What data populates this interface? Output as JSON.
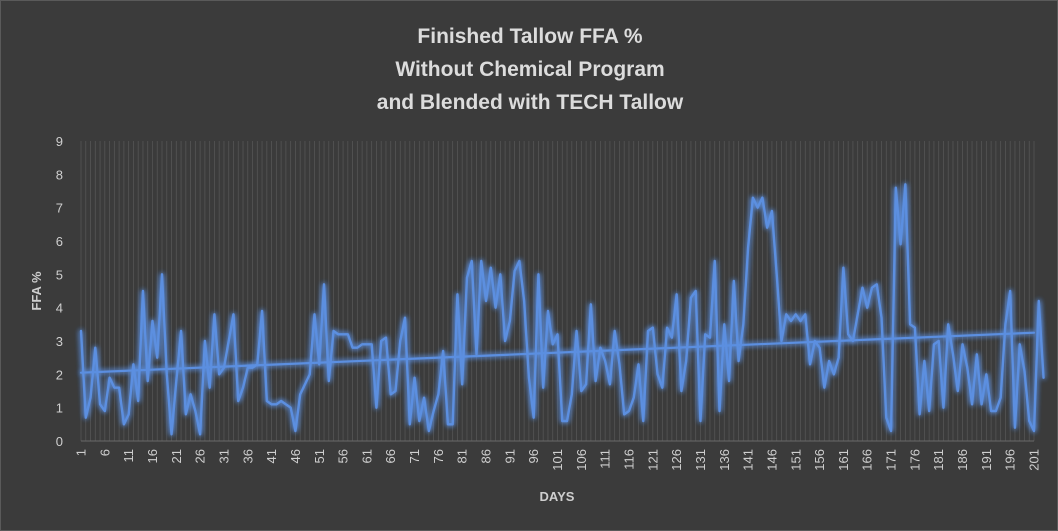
{
  "chart_data": {
    "type": "line",
    "title_lines": [
      "Finished Tallow FFA %",
      "Without Chemical Program",
      "and Blended with TECH Tallow"
    ],
    "xlabel": "DAYS",
    "ylabel": "FFA %",
    "ylim": [
      0,
      9
    ],
    "yticks": [
      0,
      1,
      2,
      3,
      4,
      5,
      6,
      7,
      8,
      9
    ],
    "xlim": [
      1,
      201
    ],
    "xticks": [
      1,
      6,
      11,
      16,
      21,
      26,
      31,
      36,
      41,
      46,
      51,
      56,
      61,
      66,
      71,
      76,
      81,
      86,
      91,
      96,
      101,
      106,
      111,
      116,
      121,
      126,
      131,
      136,
      141,
      146,
      151,
      156,
      161,
      166,
      171,
      176,
      181,
      186,
      191,
      196,
      201
    ],
    "grid": "vertical",
    "legend": "none",
    "colors": {
      "background": "#3b3b3b",
      "series": "#5b8fe0",
      "glow": "#4a7fe8",
      "grid": "#555555",
      "text": "#cfcfcf",
      "title": "#dcdcdc"
    },
    "series": [
      {
        "values": [
          3.3,
          0.7,
          1.3,
          2.8,
          1.1,
          0.9,
          1.9,
          1.6,
          1.6,
          0.5,
          0.8,
          2.3,
          1.2,
          4.5,
          1.8,
          3.6,
          2.5,
          5.0,
          2.0,
          0.2,
          1.8,
          3.3,
          0.8,
          1.4,
          0.9,
          0.2,
          3.0,
          1.6,
          3.8,
          2.0,
          2.2,
          3.0,
          3.8,
          1.2,
          1.6,
          2.2,
          2.2,
          2.3,
          3.9,
          1.2,
          1.1,
          1.1,
          1.2,
          1.1,
          1.0,
          0.3,
          1.4,
          1.7,
          2.0,
          3.8,
          2.3,
          4.7,
          1.8,
          3.3,
          3.2,
          3.2,
          3.2,
          2.8,
          2.8,
          2.9,
          2.9,
          2.9,
          1.0,
          3.0,
          3.1,
          1.4,
          1.5,
          3.0,
          3.7,
          0.5,
          1.9,
          0.6,
          1.3,
          0.3,
          0.9,
          1.4,
          2.7,
          0.5,
          0.5,
          4.4,
          1.7,
          4.9,
          5.4,
          2.6,
          5.4,
          4.2,
          5.2,
          4.0,
          5.0,
          3.0,
          3.6,
          5.1,
          5.4,
          4.2,
          1.9,
          0.7,
          5.0,
          1.6,
          3.9,
          2.9,
          3.2,
          0.6,
          0.6,
          1.4,
          3.3,
          1.5,
          1.7,
          4.1,
          1.8,
          2.8,
          2.4,
          1.7,
          3.3,
          2.3,
          0.8,
          0.9,
          1.3,
          2.3,
          0.6,
          3.3,
          3.4,
          2.0,
          1.6,
          3.4,
          3.1,
          4.4,
          1.5,
          2.4,
          4.3,
          4.5,
          0.6,
          3.2,
          3.1,
          5.4,
          0.9,
          3.5,
          1.8,
          4.8,
          2.4,
          3.5,
          5.8,
          7.3,
          7.0,
          7.3,
          6.4,
          6.9,
          5.0,
          3.0,
          3.8,
          3.6,
          3.8,
          3.6,
          3.8,
          2.3,
          3.0,
          2.8,
          1.6,
          2.4,
          2.0,
          2.5,
          5.2,
          3.2,
          3.0,
          3.8,
          4.6,
          4.0,
          4.6,
          4.7,
          3.7,
          0.7,
          0.3,
          7.6,
          5.9,
          7.7,
          3.5,
          3.4,
          0.8,
          2.4,
          0.9,
          2.9,
          3.0,
          1.0,
          3.5,
          2.6,
          1.5,
          2.9,
          2.2,
          1.1,
          2.6,
          1.1,
          2.0,
          0.9,
          0.9,
          1.3,
          3.5,
          4.5,
          0.4,
          2.9,
          2.1,
          0.6,
          0.3,
          4.2,
          1.9
        ]
      }
    ],
    "trendline": {
      "type": "linear",
      "start": [
        1,
        2.05
      ],
      "end": [
        201,
        3.25
      ]
    }
  }
}
